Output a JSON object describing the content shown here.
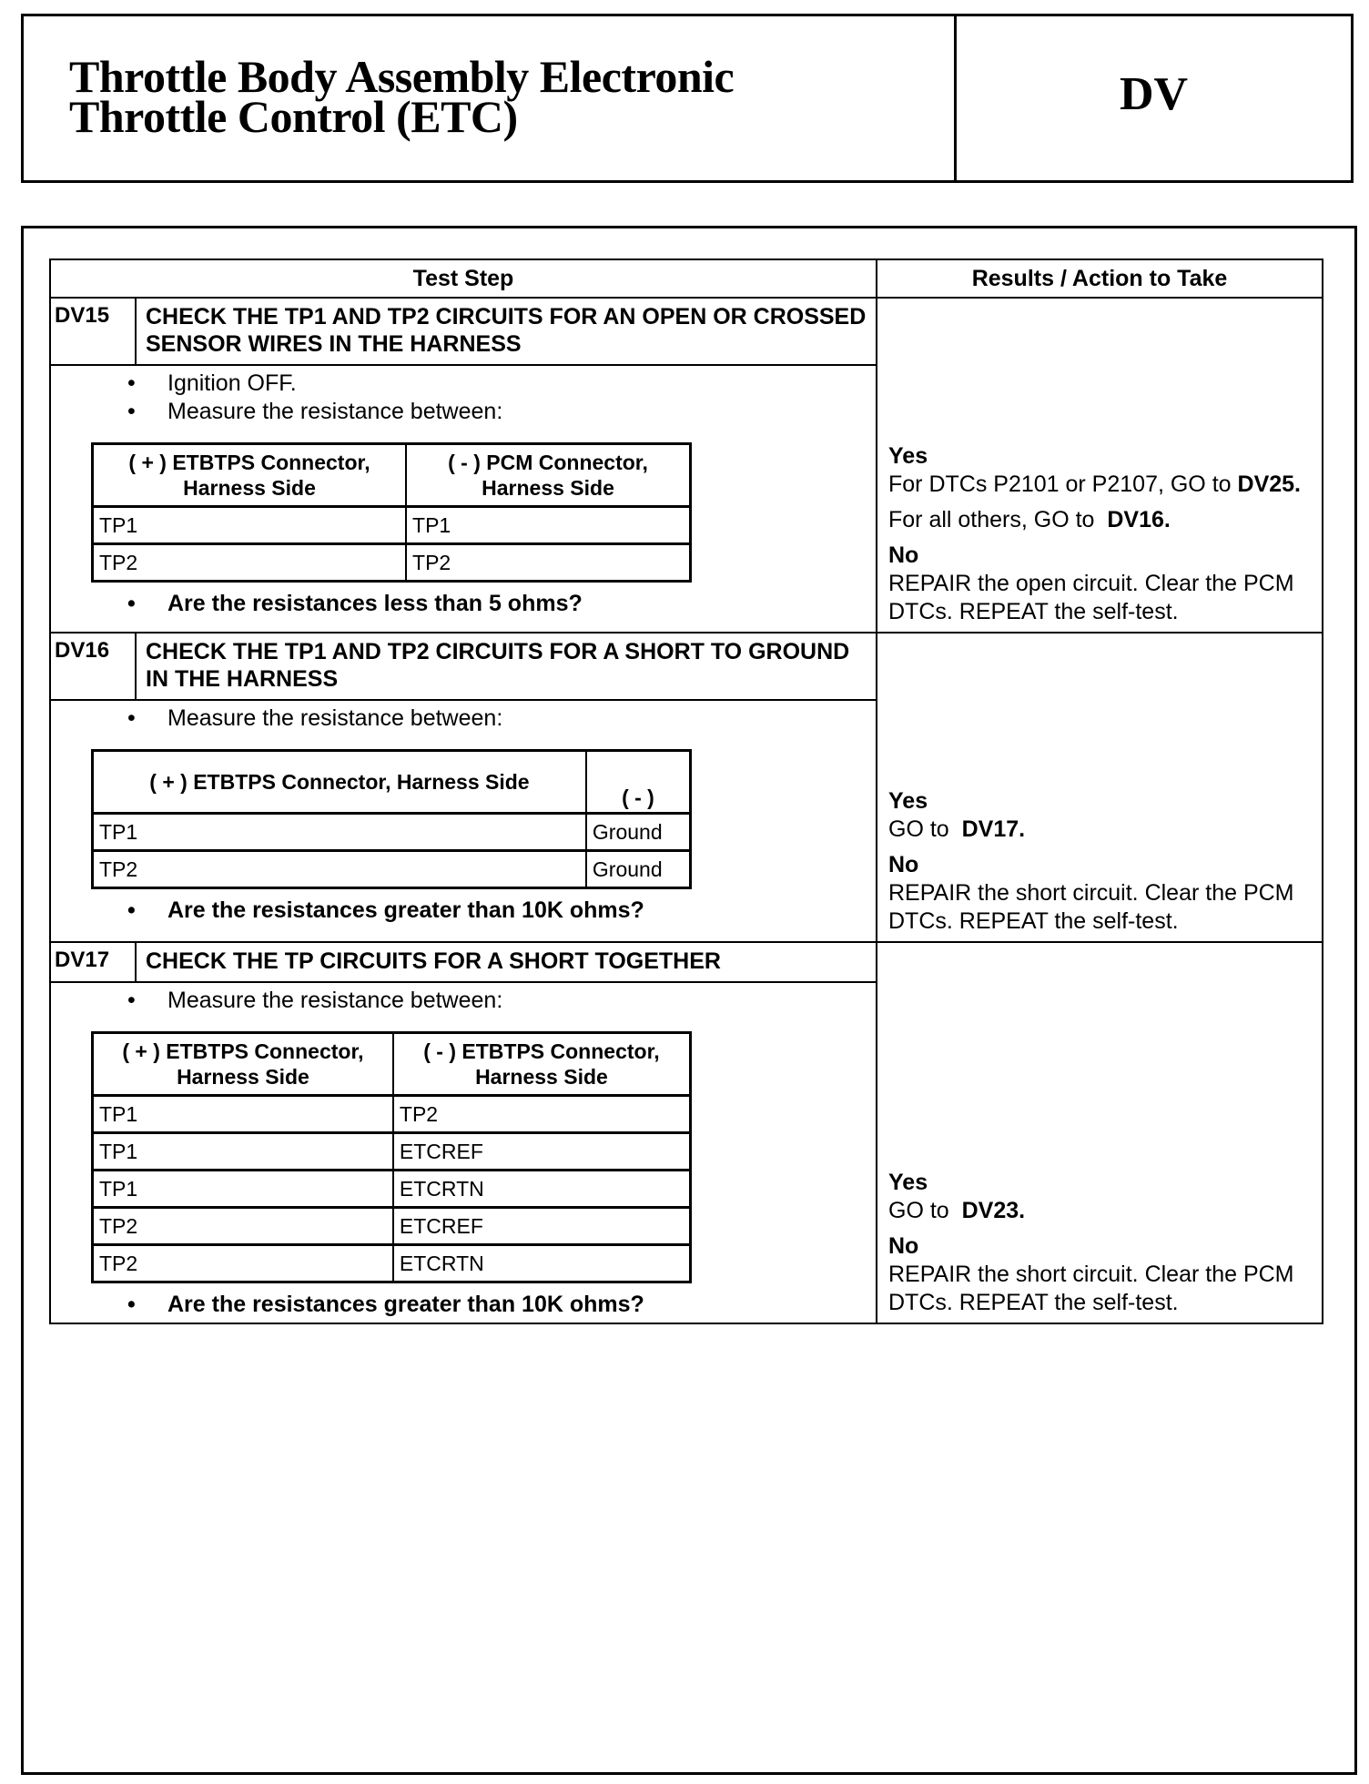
{
  "header": {
    "title_line1": "Throttle Body Assembly Electronic",
    "title_line2": "Throttle Control (ETC)",
    "section_code": "DV"
  },
  "table": {
    "col_step": "Test Step",
    "col_results": "Results / Action to Take"
  },
  "steps": [
    {
      "id": "DV15",
      "title": "CHECK THE TP1 AND TP2 CIRCUITS FOR AN OPEN OR CROSSED SENSOR WIRES IN THE HARNESS",
      "bullets": [
        "Ignition OFF.",
        "Measure the resistance between:"
      ],
      "conn_headers": [
        "( + ) ETBTPS Connector, Harness Side",
        "( - ) PCM Connector, Harness Side"
      ],
      "rows": [
        [
          "TP1",
          "TP1"
        ],
        [
          "TP2",
          "TP2"
        ]
      ],
      "question": "Are the resistances less than 5 ohms?",
      "yes_label": "Yes",
      "yes_text1": "For DTCs P2101 or P2107, GO to",
      "yes_ref1": "DV25.",
      "yes_text2": "For all others, GO to",
      "yes_ref2": "DV16.",
      "no_label": "No",
      "no_text": "REPAIR the open circuit. Clear the PCM DTCs. REPEAT the self-test."
    },
    {
      "id": "DV16",
      "title": "CHECK THE TP1 AND TP2 CIRCUITS FOR A SHORT TO GROUND IN THE HARNESS",
      "bullets": [
        "Measure the resistance between:"
      ],
      "conn_headers": [
        "( + ) ETBTPS Connector, Harness Side",
        "( - )"
      ],
      "rows": [
        [
          "TP1",
          "Ground"
        ],
        [
          "TP2",
          "Ground"
        ]
      ],
      "question": "Are the resistances greater than 10K ohms?",
      "yes_label": "Yes",
      "yes_text1": "GO to",
      "yes_ref1": "DV17.",
      "no_label": "No",
      "no_text": "REPAIR the short circuit. Clear the PCM DTCs. REPEAT the self-test."
    },
    {
      "id": "DV17",
      "title": "CHECK THE TP CIRCUITS FOR A SHORT TOGETHER",
      "bullets": [
        "Measure the resistance between:"
      ],
      "conn_headers": [
        "( + ) ETBTPS Connector, Harness Side",
        "( - ) ETBTPS Connector, Harness Side"
      ],
      "rows": [
        [
          "TP1",
          "TP2"
        ],
        [
          "TP1",
          "ETCREF"
        ],
        [
          "TP1",
          "ETCRTN"
        ],
        [
          "TP2",
          "ETCREF"
        ],
        [
          "TP2",
          "ETCRTN"
        ]
      ],
      "question": "Are the resistances greater than 10K ohms?",
      "yes_label": "Yes",
      "yes_text1": "GO to",
      "yes_ref1": "DV23.",
      "no_label": "No",
      "no_text": "REPAIR the short circuit. Clear the PCM DTCs. REPEAT the self-test."
    }
  ]
}
